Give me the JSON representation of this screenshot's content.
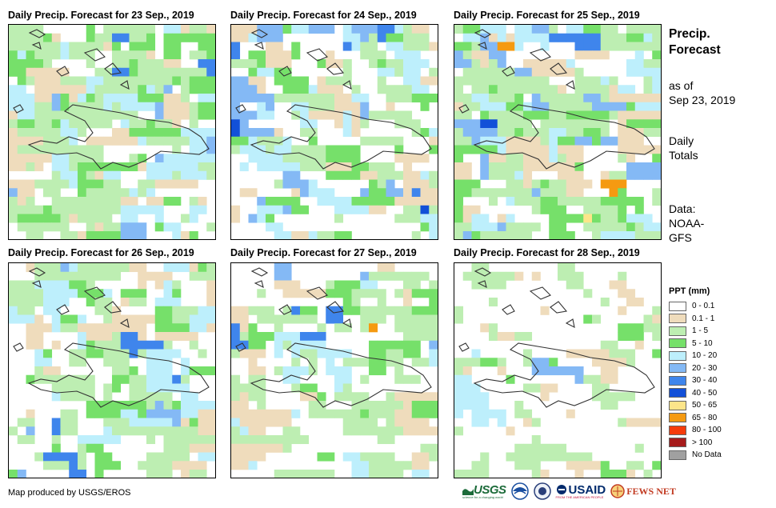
{
  "panels": [
    {
      "title": "Daily Precip. Forecast for 23 Sep., 2019"
    },
    {
      "title": "Daily Precip. Forecast for 24 Sep., 2019"
    },
    {
      "title": "Daily Precip. Forecast for 25 Sep., 2019"
    },
    {
      "title": "Daily Precip. Forecast for 26 Sep., 2019"
    },
    {
      "title": "Daily Precip. Forecast for 27 Sep., 2019"
    },
    {
      "title": "Daily Precip. Forecast for 28 Sep., 2019"
    }
  ],
  "side": {
    "title_line1": "Precip.",
    "title_line2": "Forecast",
    "asof_line1": "as of",
    "asof_line2": "Sep 23, 2019",
    "daily_line1": "Daily",
    "daily_line2": "Totals",
    "data_line1": "Data:",
    "data_line2": "NOAA-",
    "data_line3": "GFS"
  },
  "legend": {
    "title": "PPT (mm)",
    "items": [
      {
        "label": "0 - 0.1",
        "color": "#ffffff"
      },
      {
        "label": "0.1 - 1",
        "color": "#efdcbc"
      },
      {
        "label": "1 - 5",
        "color": "#bdeeb2"
      },
      {
        "label": "5 - 10",
        "color": "#76e06a"
      },
      {
        "label": "10 - 20",
        "color": "#bdeffc"
      },
      {
        "label": "20 - 30",
        "color": "#84b9f5"
      },
      {
        "label": "30 - 40",
        "color": "#3f85ec"
      },
      {
        "label": "40 - 50",
        "color": "#1250d8"
      },
      {
        "label": "50 - 65",
        "color": "#fce58a"
      },
      {
        "label": "65 - 80",
        "color": "#f59a11"
      },
      {
        "label": "80 - 100",
        "color": "#f53b0b"
      },
      {
        "label": "> 100",
        "color": "#a61b1b"
      },
      {
        "label": "No Data",
        "color": "#a0a0a0"
      }
    ]
  },
  "credit": "Map produced by USGS/EROS",
  "logos": {
    "usgs": "USGS",
    "usgs_tagline": "science for a changing world",
    "noaa": "NOAA",
    "usaid": "USAID",
    "usaid_tagline": "FROM THE AMERICAN PEOPLE",
    "fews": "FEWS NET"
  }
}
